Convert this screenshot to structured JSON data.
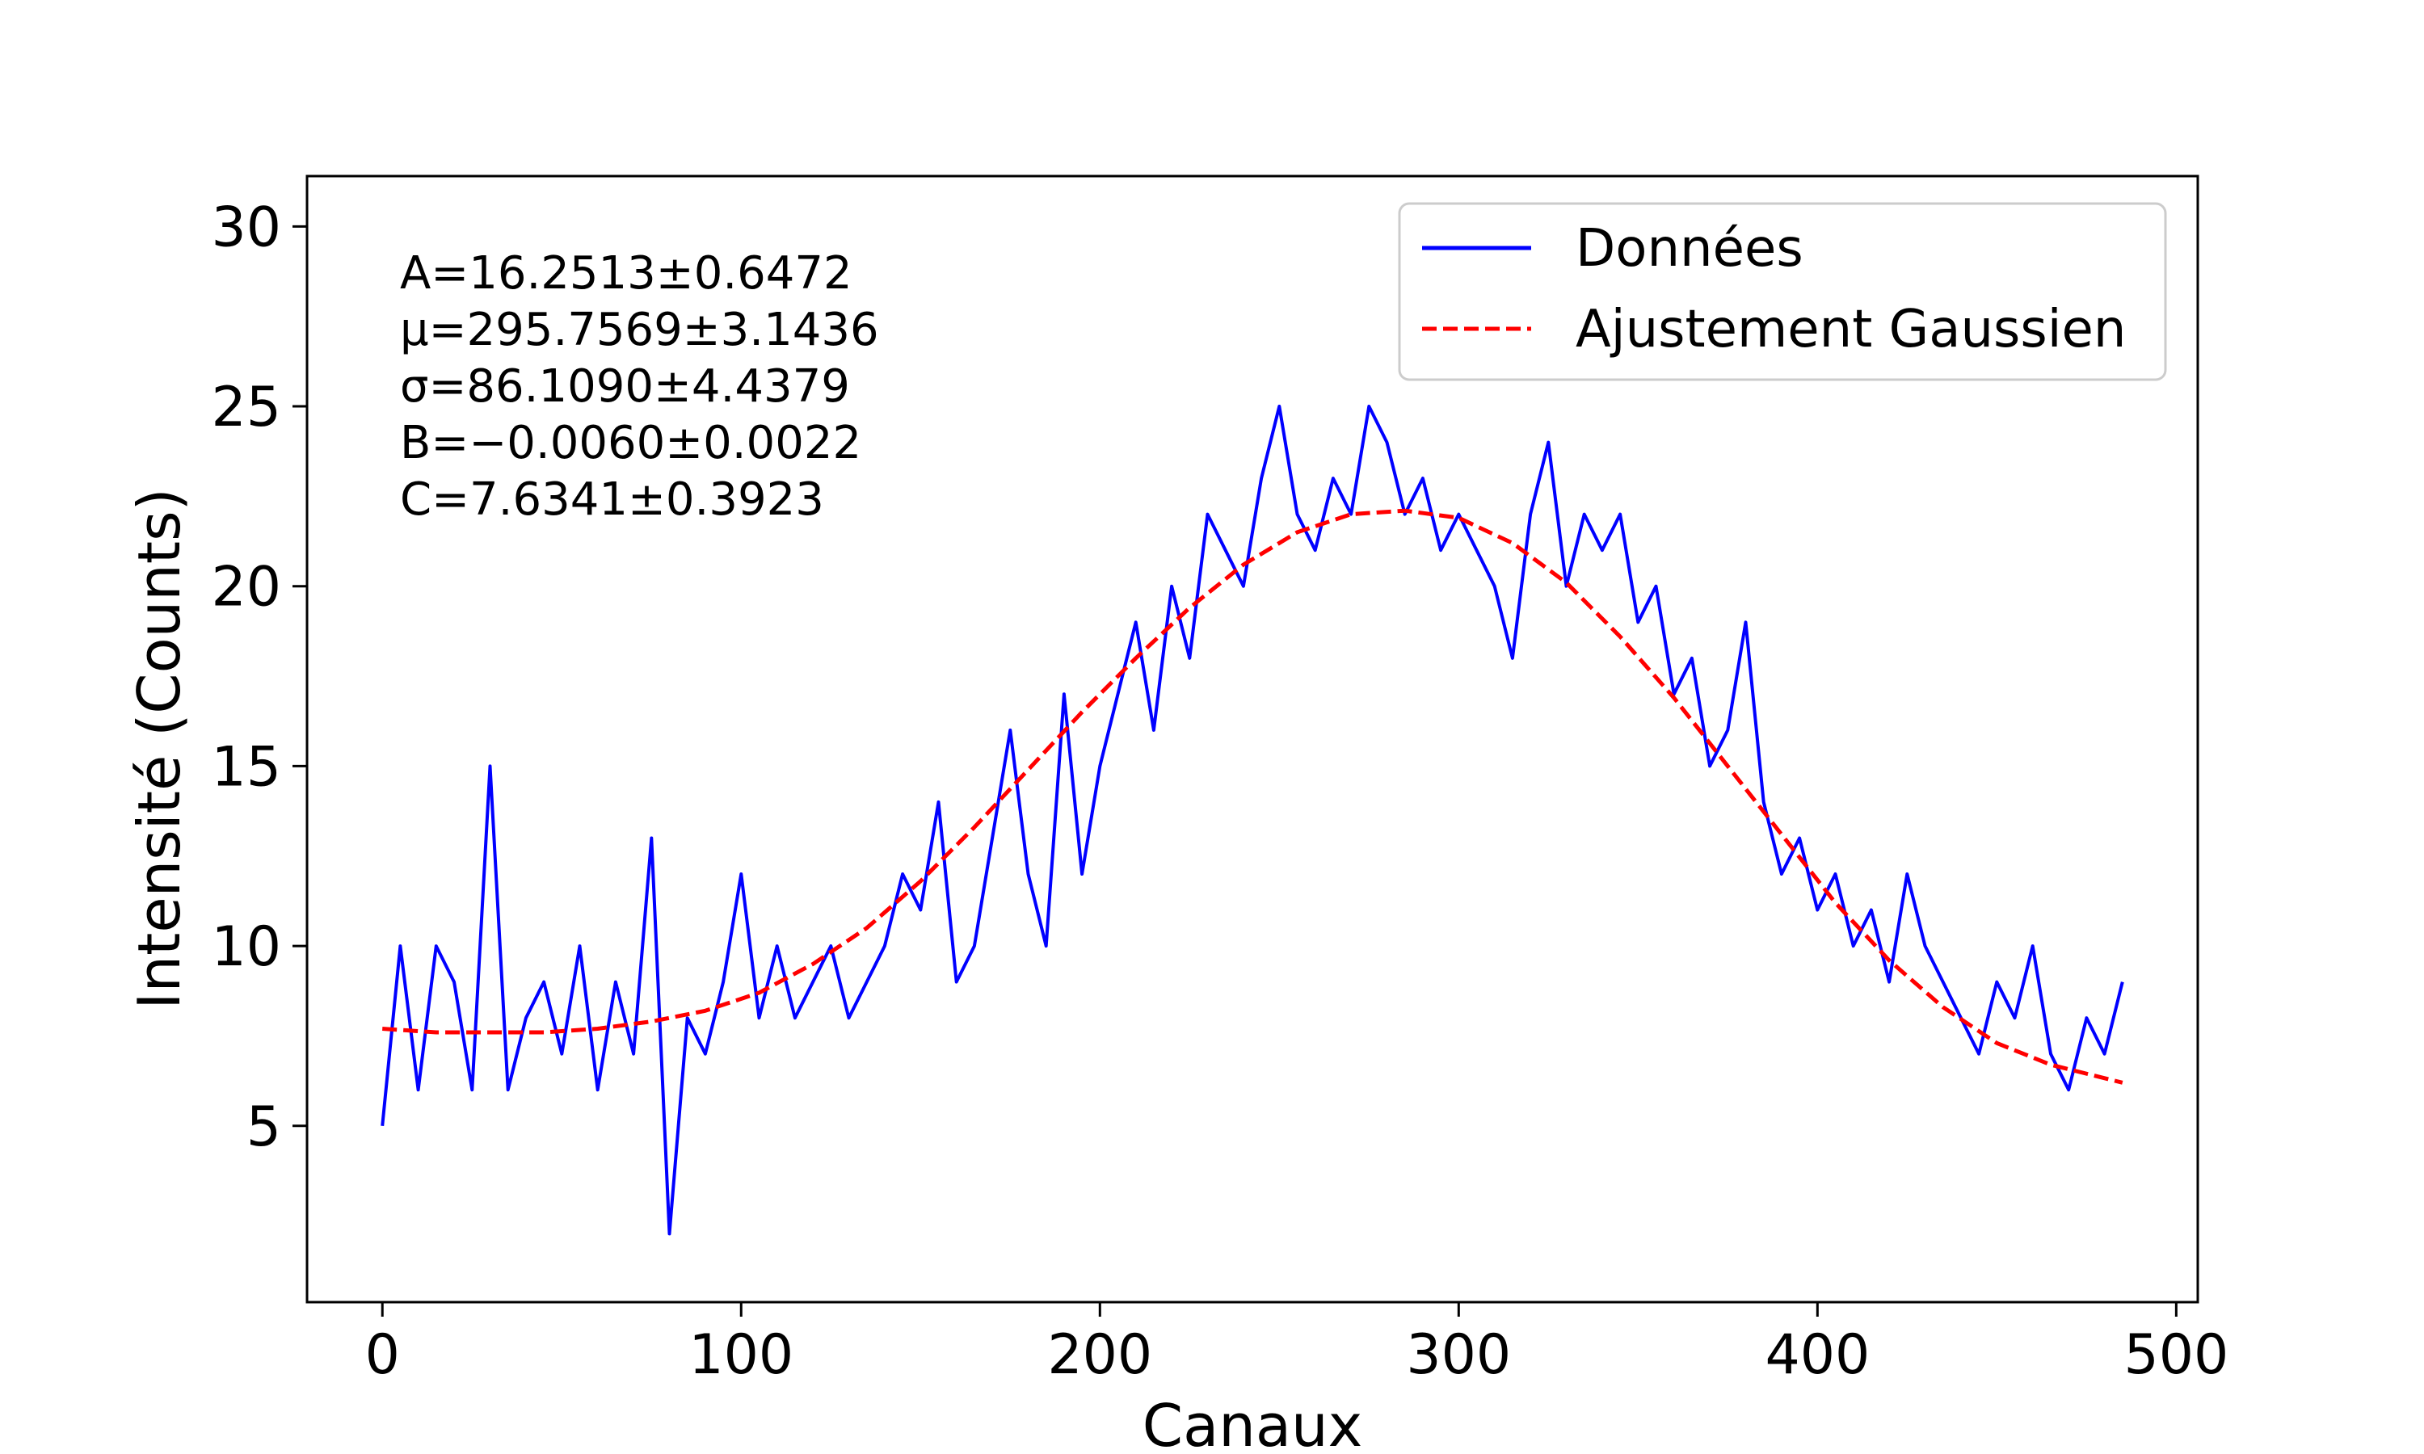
{
  "chart_data": {
    "type": "line",
    "title": "",
    "xlabel": "Canaux",
    "ylabel": "Intensité (Counts)",
    "xlim": [
      -21,
      506
    ],
    "ylim": [
      0.1,
      31.4
    ],
    "xticks": [
      0,
      100,
      200,
      300,
      400,
      500
    ],
    "yticks": [
      5,
      10,
      15,
      20,
      25,
      30
    ],
    "grid": false,
    "legend_position": "top-right",
    "series": [
      {
        "name": "Données",
        "style": "solid",
        "color": "#0000ff",
        "x": [
          0,
          5,
          10,
          15,
          20,
          25,
          30,
          35,
          40,
          45,
          50,
          55,
          60,
          65,
          70,
          75,
          80,
          85,
          90,
          95,
          100,
          105,
          110,
          115,
          120,
          125,
          130,
          135,
          140,
          145,
          150,
          155,
          160,
          165,
          170,
          175,
          180,
          185,
          190,
          195,
          200,
          205,
          210,
          215,
          220,
          225,
          230,
          235,
          240,
          245,
          250,
          255,
          260,
          265,
          270,
          275,
          280,
          285,
          290,
          295,
          300,
          305,
          310,
          315,
          320,
          325,
          330,
          335,
          340,
          345,
          350,
          355,
          360,
          365,
          370,
          375,
          380,
          385,
          390,
          395,
          400,
          405,
          410,
          415,
          420,
          425,
          430,
          435,
          440,
          445,
          450,
          455,
          460,
          465,
          470,
          475,
          480,
          485
        ],
        "y": [
          5,
          10,
          6,
          10,
          9,
          6,
          15,
          6,
          8,
          9,
          7,
          10,
          6,
          9,
          7,
          13,
          2,
          8,
          7,
          9,
          12,
          8,
          10,
          8,
          9,
          10,
          8,
          9,
          10,
          12,
          11,
          14,
          9,
          10,
          13,
          16,
          12,
          10,
          17,
          12,
          15,
          17,
          19,
          16,
          20,
          18,
          22,
          21,
          20,
          23,
          25,
          22,
          21,
          23,
          22,
          25,
          24,
          22,
          23,
          21,
          22,
          21,
          20,
          18,
          22,
          24,
          20,
          22,
          21,
          22,
          19,
          20,
          17,
          18,
          15,
          16,
          19,
          14,
          12,
          13,
          11,
          12,
          10,
          11,
          9,
          12,
          10,
          9,
          8,
          7,
          9,
          8,
          10,
          7,
          6,
          8,
          7,
          9
        ]
      },
      {
        "name": "Ajustement Gaussien",
        "style": "dashed",
        "color": "#ff0000",
        "x": [
          0,
          15,
          30,
          45,
          60,
          75,
          90,
          105,
          120,
          135,
          150,
          165,
          180,
          195,
          210,
          225,
          240,
          255,
          270,
          285,
          300,
          315,
          330,
          345,
          360,
          375,
          390,
          405,
          420,
          435,
          450,
          465,
          485
        ],
        "y": [
          7.7,
          7.6,
          7.6,
          7.6,
          7.7,
          7.9,
          8.2,
          8.7,
          9.5,
          10.5,
          11.8,
          13.3,
          14.9,
          16.5,
          18.0,
          19.4,
          20.6,
          21.5,
          22.0,
          22.1,
          21.9,
          21.2,
          20.1,
          18.6,
          16.9,
          15.0,
          13.1,
          11.2,
          9.6,
          8.3,
          7.3,
          6.7,
          6.2
        ]
      }
    ],
    "annotations": [
      "A=16.2513±0.6472",
      "μ=295.7569±3.1436",
      "σ=86.1090±4.4379",
      "B=−0.0060±0.0022",
      "C=7.6341±0.3923"
    ]
  }
}
